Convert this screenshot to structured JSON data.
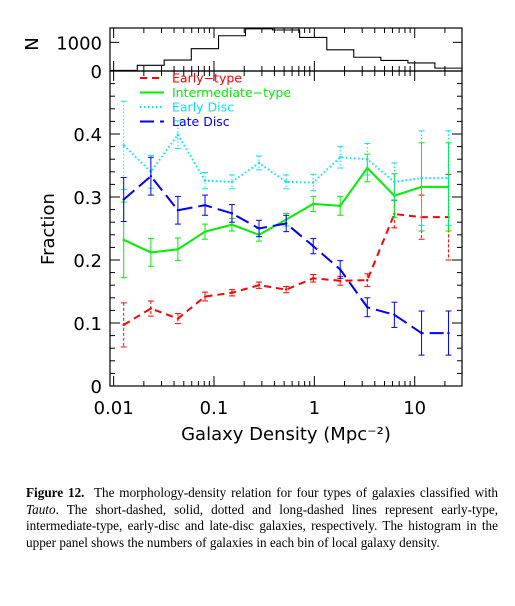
{
  "chart_data": [
    {
      "type": "bar",
      "panel": "histogram",
      "ylabel": "N",
      "ylim": [
        0,
        1500
      ],
      "yticks": [
        0,
        1000
      ],
      "ytick_labels": [
        "0",
        "1000"
      ],
      "bin_edges": [
        0.0092,
        0.0172,
        0.0319,
        0.0594,
        0.111,
        0.206,
        0.384,
        0.714,
        1.33,
        2.47,
        4.6,
        8.56,
        15.9,
        29.6
      ],
      "counts": [
        20,
        200,
        380,
        780,
        1230,
        1470,
        1430,
        1170,
        740,
        480,
        370,
        280,
        100
      ]
    },
    {
      "type": "line",
      "panel": "fraction",
      "xlabel": "Galaxy Density (Mpc⁻²)",
      "ylabel": "Fraction",
      "xscale": "log",
      "xlim": [
        0.0092,
        29.6
      ],
      "ylim": [
        0,
        0.5
      ],
      "xticks": [
        0.01,
        0.1,
        1,
        10
      ],
      "xtick_labels": [
        "0.01",
        "0.1",
        "1",
        "10"
      ],
      "yticks": [
        0,
        0.1,
        0.2,
        0.3,
        0.4
      ],
      "ytick_labels": [
        "0",
        "0.1",
        "0.2",
        "0.3",
        "0.4"
      ],
      "x": [
        0.0126,
        0.0235,
        0.0437,
        0.0814,
        0.151,
        0.281,
        0.524,
        0.975,
        1.81,
        3.37,
        6.27,
        11.7,
        21.7
      ],
      "series": [
        {
          "name": "Early−type",
          "color": "#ff0000",
          "dash": "short-dashed",
          "values": [
            0.097,
            0.123,
            0.107,
            0.142,
            0.148,
            0.16,
            0.153,
            0.171,
            0.167,
            0.168,
            0.273,
            0.268,
            0.268
          ],
          "errors": [
            0.035,
            0.012,
            0.008,
            0.007,
            0.005,
            0.005,
            0.005,
            0.006,
            0.007,
            0.01,
            0.022,
            0.035,
            0.068
          ]
        },
        {
          "name": "Intermediate−type",
          "color": "#00ee00",
          "dash": "solid",
          "values": [
            0.232,
            0.212,
            0.217,
            0.245,
            0.256,
            0.24,
            0.264,
            0.289,
            0.286,
            0.346,
            0.302,
            0.316,
            0.316
          ],
          "errors": [
            0.06,
            0.022,
            0.018,
            0.012,
            0.01,
            0.01,
            0.01,
            0.012,
            0.015,
            0.022,
            0.035,
            0.07,
            0.07
          ]
        },
        {
          "name": "Early Disc",
          "color": "#00e5ee",
          "dash": "dotted",
          "values": [
            0.382,
            0.34,
            0.399,
            0.326,
            0.324,
            0.354,
            0.324,
            0.323,
            0.363,
            0.36,
            0.324,
            0.33,
            0.33
          ],
          "errors": [
            0.07,
            0.026,
            0.022,
            0.013,
            0.011,
            0.011,
            0.011,
            0.013,
            0.017,
            0.025,
            0.03,
            0.075,
            0.075
          ]
        },
        {
          "name": "Late Disc",
          "color": "#0000ff",
          "dash": "long-dashed",
          "values": [
            0.296,
            0.333,
            0.279,
            0.287,
            0.274,
            0.25,
            0.258,
            0.222,
            0.185,
            0.125,
            0.113,
            0.084,
            0.084
          ],
          "errors": [
            0.035,
            0.03,
            0.022,
            0.016,
            0.014,
            0.013,
            0.013,
            0.012,
            0.014,
            0.015,
            0.02,
            0.035,
            0.035
          ]
        }
      ]
    }
  ],
  "caption": {
    "label": "Figure 12.",
    "text_before": "The morphology-density relation for four types of galaxies classified with ",
    "italic": "Tauto",
    "text_after": ". The short-dashed, solid, dotted and long-dashed lines represent early-type, intermediate-type, early-disc and late-disc galaxies, respectively. The histogram in the upper panel shows the numbers of galaxies in each bin of local galaxy density."
  }
}
